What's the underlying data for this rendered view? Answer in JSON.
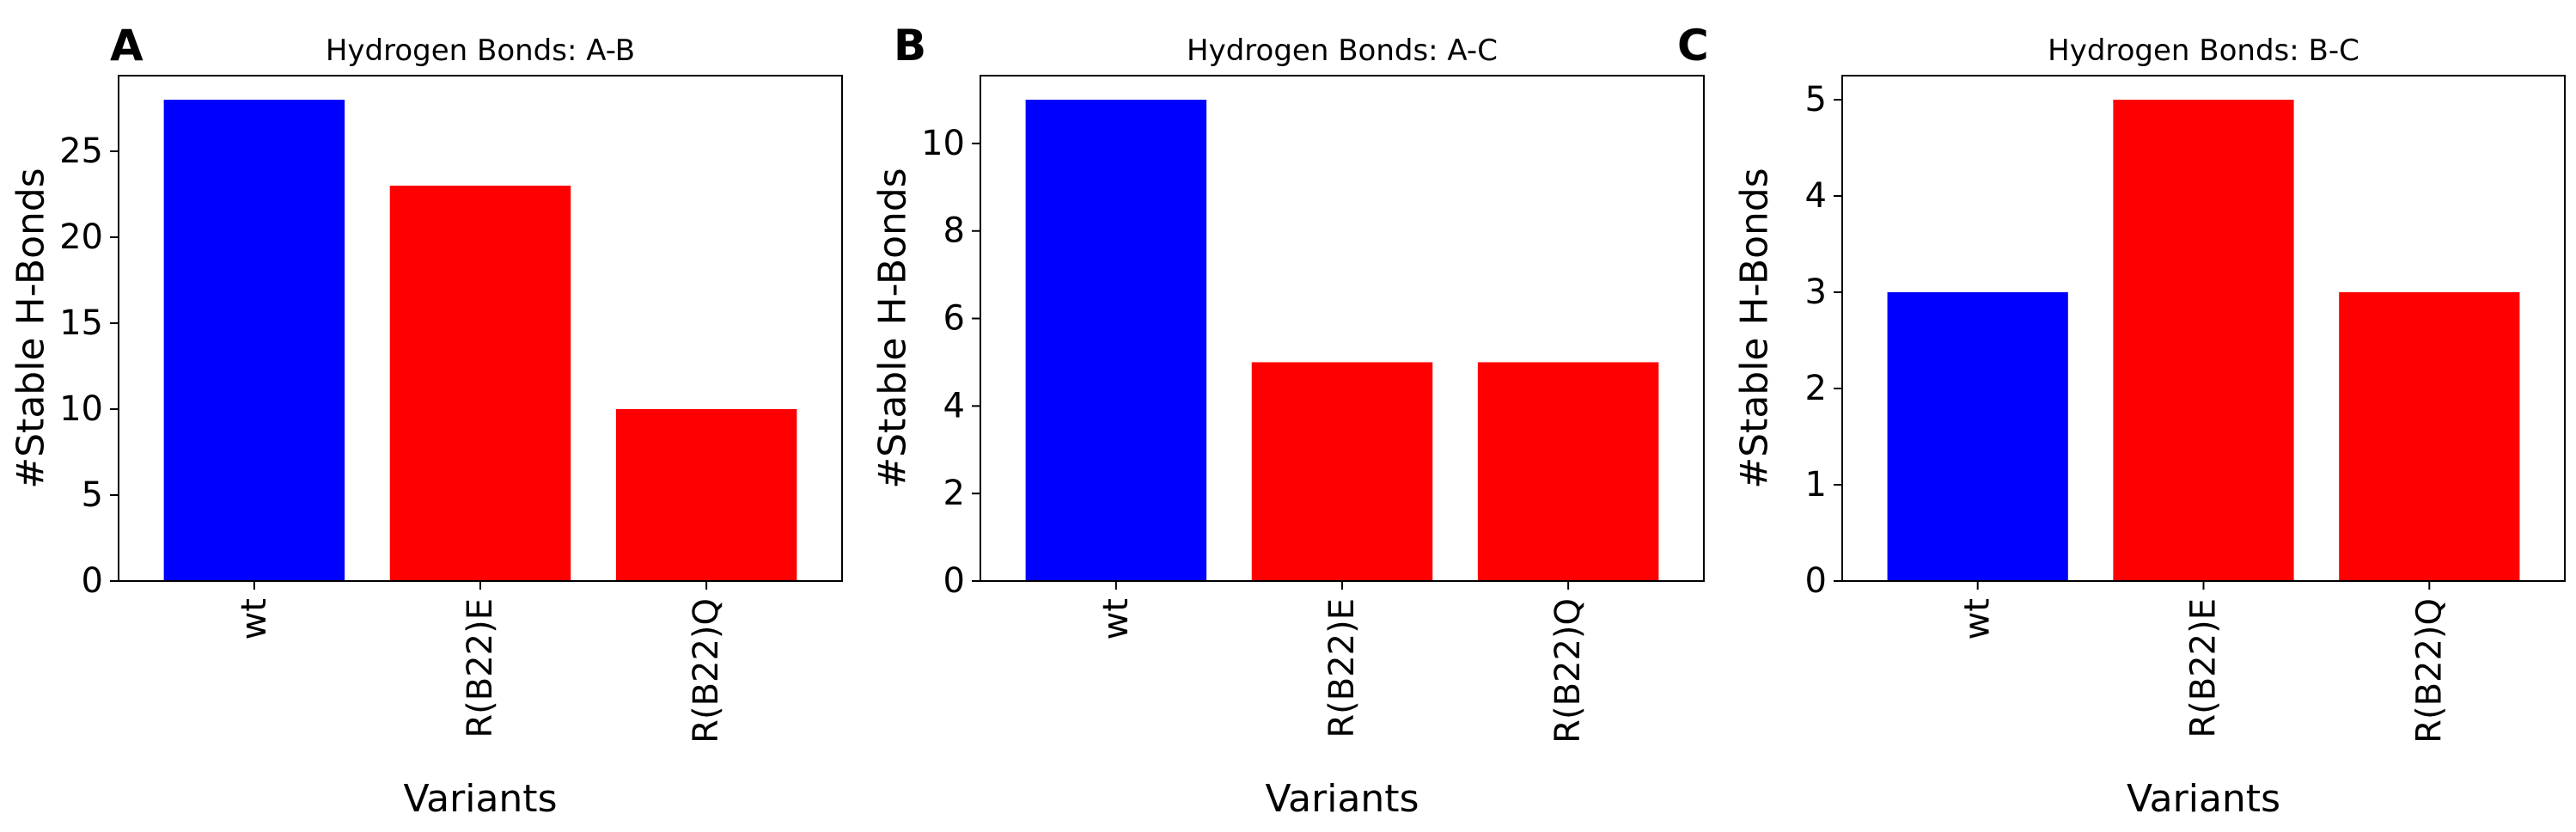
{
  "chart_data": [
    {
      "panel_label": "A",
      "type": "bar",
      "title": "Hydrogen Bonds: A-B",
      "xlabel": "Variants",
      "ylabel": "#Stable H-Bonds",
      "categories": [
        "wt",
        "R(B22)E",
        "R(B22)Q"
      ],
      "values": [
        28,
        23,
        10
      ],
      "colors": [
        "#0000ff",
        "#ff0000",
        "#ff0000"
      ],
      "ylim": [
        0,
        29.4
      ],
      "yticks": [
        0,
        5,
        10,
        15,
        20,
        25
      ],
      "grid": false
    },
    {
      "panel_label": "B",
      "type": "bar",
      "title": "Hydrogen Bonds: A-C",
      "xlabel": "Variants",
      "ylabel": "#Stable H-Bonds",
      "categories": [
        "wt",
        "R(B22)E",
        "R(B22)Q"
      ],
      "values": [
        11,
        5,
        5
      ],
      "colors": [
        "#0000ff",
        "#ff0000",
        "#ff0000"
      ],
      "ylim": [
        0,
        11.55
      ],
      "yticks": [
        0,
        2,
        4,
        6,
        8,
        10
      ],
      "grid": false
    },
    {
      "panel_label": "C",
      "type": "bar",
      "title": "Hydrogen Bonds: B-C",
      "xlabel": "Variants",
      "ylabel": "#Stable H-Bonds",
      "categories": [
        "wt",
        "R(B22)E",
        "R(B22)Q"
      ],
      "values": [
        3,
        5,
        3
      ],
      "colors": [
        "#0000ff",
        "#ff0000",
        "#ff0000"
      ],
      "ylim": [
        0,
        5.25
      ],
      "yticks": [
        0,
        1,
        2,
        3,
        4,
        5
      ],
      "grid": false
    }
  ]
}
